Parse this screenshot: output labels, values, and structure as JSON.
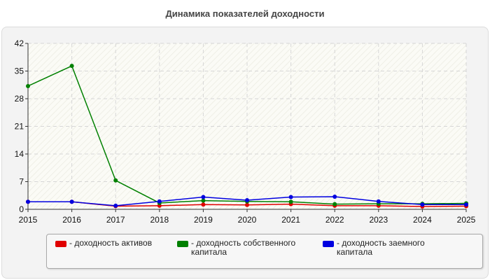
{
  "chart_data": {
    "type": "line",
    "title": "Динамика показателей доходности",
    "x": [
      "2015",
      "2016",
      "2017",
      "2018",
      "2019",
      "2020",
      "2021",
      "2022",
      "2023",
      "2024",
      "2025"
    ],
    "ylim": [
      0,
      42
    ],
    "yticks": [
      0,
      7,
      14,
      21,
      28,
      35,
      42
    ],
    "grid": true,
    "legend_position": "bottom",
    "series": [
      {
        "name": "- доходность активов",
        "color": "#e00000",
        "values": [
          1.9,
          1.9,
          0.8,
          0.9,
          1.2,
          1.1,
          1.3,
          0.9,
          0.9,
          0.7,
          0.8
        ]
      },
      {
        "name": "- доходность собственного капитала",
        "color": "#008000",
        "values": [
          31.2,
          36.3,
          7.3,
          1.6,
          2.2,
          2.0,
          1.9,
          1.3,
          1.4,
          1.4,
          1.5
        ]
      },
      {
        "name": "- доходность заемного капитала",
        "color": "#0000e0",
        "values": [
          1.9,
          1.9,
          0.9,
          2.0,
          3.1,
          2.3,
          3.1,
          3.2,
          2.0,
          1.2,
          1.2
        ]
      }
    ]
  }
}
